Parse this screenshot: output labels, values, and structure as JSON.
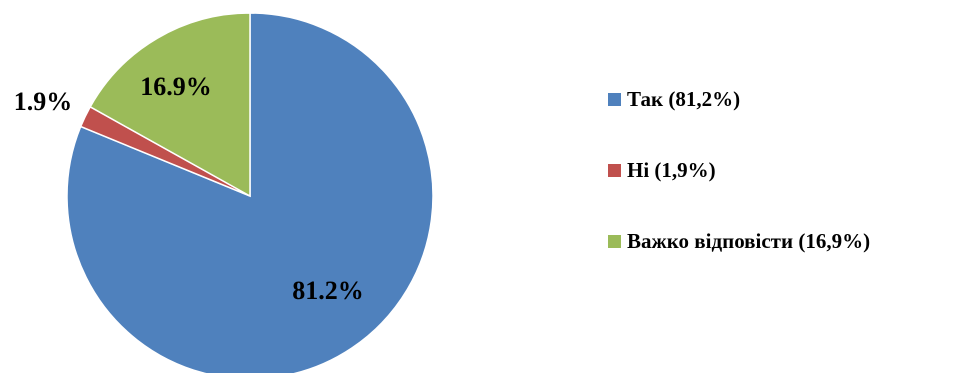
{
  "chart_data": {
    "type": "pie",
    "categories": [
      "Так (81,2%)",
      "Ні (1,9%)",
      "Важко відповісти (16,9%)"
    ],
    "values": [
      81.2,
      1.9,
      16.9
    ],
    "data_labels": [
      "81.2%",
      "1.9%",
      "16.9%"
    ],
    "colors": [
      "#4F81BD",
      "#C0504D",
      "#9BBB59"
    ],
    "legend_position": "right"
  }
}
